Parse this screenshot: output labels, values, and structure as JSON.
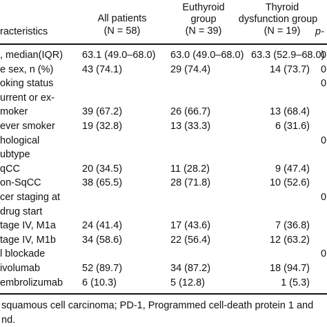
{
  "header": {
    "col0": "racteristics",
    "col1_line1": "All patients",
    "col1_line2": "(N = 58)",
    "col2_line1": "Euthyroid",
    "col2_line2": "group",
    "col2_line3": "(N = 39)",
    "col3_line1": "Thyroid",
    "col3_line2": "dysfunction group",
    "col3_line3": "(N = 19)",
    "col4": "p-"
  },
  "rows": [
    {
      "label": ", median(IQR)",
      "all": "63.1 (49.0–68.0)",
      "eu": "63.0 (49.0–68.0)",
      "dys": "63.3 (52.9–68.0)",
      "p": "0"
    },
    {
      "label": "e sex, n (%)",
      "all": "43 (74.1)",
      "eu": "29 (74.4)",
      "dys": "14 (73.7)",
      "p": "0"
    },
    {
      "label": "oking status",
      "all": "",
      "eu": "",
      "dys": "",
      "p": "0"
    },
    {
      "label": "urrent or ex-",
      "all": "",
      "eu": "",
      "dys": "",
      "p": ""
    },
    {
      "label": "moker",
      "all": "39 (67.2)",
      "eu": "26 (66.7)",
      "dys": "13 (68.4)",
      "p": ""
    },
    {
      "label": "ever smoker",
      "all": "19 (32.8)",
      "eu": "13 (33.3)",
      "dys": "6 (31.6)",
      "p": ""
    },
    {
      "label": "hological",
      "all": "",
      "eu": "",
      "dys": "",
      "p": "0"
    },
    {
      "label": "ubtype",
      "all": "",
      "eu": "",
      "dys": "",
      "p": ""
    },
    {
      "label": "qCC",
      "all": "20 (34.5)",
      "eu": "11 (28.2)",
      "dys": "9 (47.4)",
      "p": ""
    },
    {
      "label": "on-SqCC",
      "all": "38 (65.5)",
      "eu": "28 (71.8)",
      "dys": "10 (52.6)",
      "p": ""
    },
    {
      "label": "cer staging at",
      "all": "",
      "eu": "",
      "dys": "",
      "p": "0"
    },
    {
      "label": "drug start",
      "all": "",
      "eu": "",
      "dys": "",
      "p": ""
    },
    {
      "label": "tage IV, M1a",
      "all": "24 (41.4)",
      "eu": "17 (43.6)",
      "dys": "7 (36.8)",
      "p": ""
    },
    {
      "label": "tage IV, M1b",
      "all": "34 (58.6)",
      "eu": "22 (56.4)",
      "dys": "12 (63.2)",
      "p": ""
    },
    {
      "label": "l  blockade",
      "all": "",
      "eu": "",
      "dys": "",
      "p": "0"
    },
    {
      "label": "ivolumab",
      "all": "52 (89.7)",
      "eu": "34 (87.2)",
      "dys": "18 (94.7)",
      "p": ""
    },
    {
      "label": "embrolizumab",
      "all": "6 (10.3)",
      "eu": "5 (12.8)",
      "dys": "1 (5.3)",
      "p": ""
    }
  ],
  "footnote": {
    "line1": "squamous cell carcinoma; PD-1, Programmed cell-death protein 1 and",
    "line2": "nd."
  }
}
